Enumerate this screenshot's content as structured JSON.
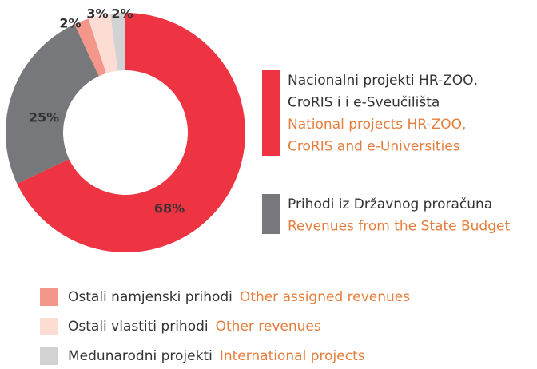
{
  "chart_data": {
    "type": "donut",
    "values": [
      68,
      25,
      2,
      3,
      2
    ],
    "value_labels": [
      "68%",
      "25%",
      "2%",
      "3%",
      "2%"
    ],
    "colors": [
      "#ee3342",
      "#77787b",
      "#f4968a",
      "#fddcd3",
      "#d1d2d4"
    ],
    "legend": [
      {
        "local": [
          "Nacionalni projekti HR-ZOO,",
          "CroRIS i  i e-Sveučilišta"
        ],
        "english": [
          "National projects HR-ZOO,",
          "CroRIS and e-Universities"
        ]
      },
      {
        "local": [
          "Prihodi iz Državnog proračuna"
        ],
        "english": [
          "Revenues from the State Budget"
        ]
      },
      {
        "local": [
          "Ostali namjenski prihodi"
        ],
        "english": [
          "Other assigned revenues"
        ]
      },
      {
        "local": [
          "Ostali vlastiti prihodi"
        ],
        "english": [
          "Other revenues"
        ]
      },
      {
        "local": [
          "Međunarodni projekti"
        ],
        "english": [
          "International projects"
        ]
      }
    ]
  }
}
